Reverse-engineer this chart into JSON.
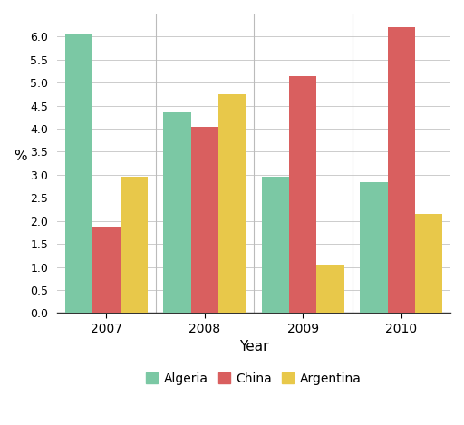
{
  "years": [
    "2007",
    "2008",
    "2009",
    "2010"
  ],
  "algeria": [
    6.05,
    4.35,
    2.95,
    2.85
  ],
  "china": [
    1.85,
    4.05,
    5.15,
    6.2
  ],
  "argentina": [
    2.95,
    4.75,
    1.05,
    2.15
  ],
  "algeria_color": "#7bc8a4",
  "china_color": "#d95f5f",
  "argentina_color": "#e8c84a",
  "xlabel": "Year",
  "ylabel": "%",
  "ylim": [
    0,
    6.5
  ],
  "yticks": [
    0.0,
    0.5,
    1.0,
    1.5,
    2.0,
    2.5,
    3.0,
    3.5,
    4.0,
    4.5,
    5.0,
    5.5,
    6.0
  ],
  "legend_labels": [
    "Algeria",
    "China",
    "Argentina"
  ],
  "bar_width": 0.28,
  "background_color": "#ffffff",
  "grid_color": "#cccccc"
}
